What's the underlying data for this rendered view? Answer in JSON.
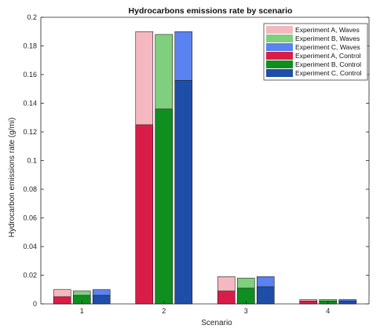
{
  "chart_data": {
    "type": "bar",
    "title": "Hydrocarbons emissions rate by scenario",
    "xlabel": "Scenario",
    "ylabel": "Hydrocarbon emissions rate (g/mi)",
    "categories": [
      "1",
      "2",
      "3",
      "4"
    ],
    "ylim": [
      0,
      0.2
    ],
    "yticks": [
      0,
      0.02,
      0.04,
      0.06,
      0.08,
      0.1,
      0.12,
      0.14,
      0.16,
      0.18,
      0.2
    ],
    "ytick_labels": [
      "0",
      "0.02",
      "0.04",
      "0.06",
      "0.08",
      "0.1",
      "0.12",
      "0.14",
      "0.16",
      "0.18",
      "0.2"
    ],
    "grid": false,
    "legend_position": "top-right",
    "overlay": "Control bars drawn in front of Waves bars for the same experiment",
    "series": [
      {
        "name": "Experiment A, Waves",
        "color": "#f5b8c0",
        "values": [
          0.01,
          0.19,
          0.019,
          0.003
        ]
      },
      {
        "name": "Experiment B, Waves",
        "color": "#7fcf7f",
        "values": [
          0.009,
          0.188,
          0.018,
          0.003
        ]
      },
      {
        "name": "Experiment C, Waves",
        "color": "#5a82f0",
        "values": [
          0.01,
          0.19,
          0.019,
          0.003
        ]
      },
      {
        "name": "Experiment A, Control",
        "color": "#d81e48",
        "values": [
          0.005,
          0.125,
          0.009,
          0.002
        ]
      },
      {
        "name": "Experiment B, Control",
        "color": "#0f8f1f",
        "values": [
          0.006,
          0.136,
          0.011,
          0.002
        ]
      },
      {
        "name": "Experiment C, Control",
        "color": "#1f4ea8",
        "values": [
          0.006,
          0.156,
          0.012,
          0.002
        ]
      }
    ]
  }
}
